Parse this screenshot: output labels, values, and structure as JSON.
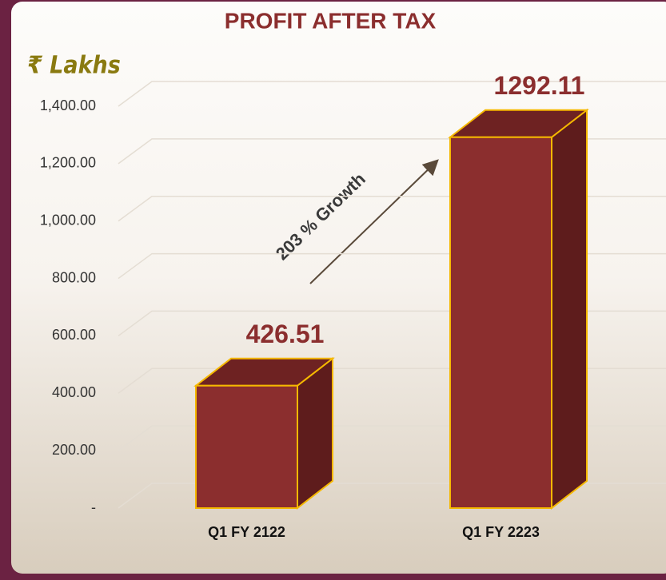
{
  "chart_data": {
    "type": "bar3d",
    "title": "PROFIT AFTER TAX",
    "y_label": "₹ Lakhs",
    "categories": [
      "Q1 FY 2122",
      "Q1 FY 2223"
    ],
    "values": [
      426.51,
      1292.11
    ],
    "color": "#8b2e2e",
    "edge_color": "#f5b800",
    "ylim": [
      0,
      1400
    ],
    "yticks": [
      {
        "value": 0,
        "label": "-"
      },
      {
        "value": 200,
        "label": "200.00"
      },
      {
        "value": 400,
        "label": "400.00"
      },
      {
        "value": 600,
        "label": "600.00"
      },
      {
        "value": 800,
        "label": "800.00"
      },
      {
        "value": 1000,
        "label": "1,000.00"
      },
      {
        "value": 1200,
        "label": "1,200.00"
      },
      {
        "value": 1400,
        "label": "1,400.00"
      }
    ],
    "grid": true,
    "annotation": "203 % Growth"
  }
}
